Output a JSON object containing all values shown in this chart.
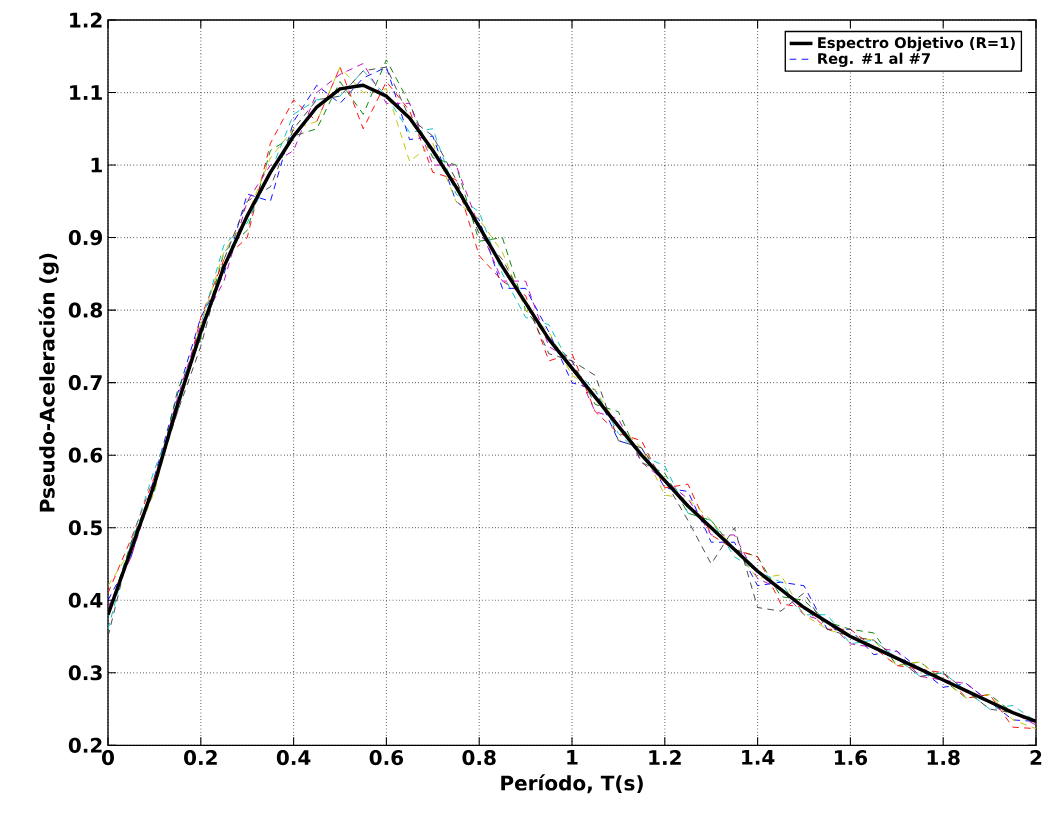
{
  "chart_data": {
    "type": "line",
    "xlabel": "Período, T(s)",
    "ylabel": "Pseudo-Aceleración (g)",
    "xlim": [
      0,
      2
    ],
    "ylim": [
      0.2,
      1.2
    ],
    "xticks": [
      0,
      0.2,
      0.4,
      0.6,
      0.8,
      1,
      1.2,
      1.4,
      1.6,
      1.8,
      2
    ],
    "yticks": [
      0.2,
      0.3,
      0.4,
      0.5,
      0.6,
      0.7,
      0.8,
      0.9,
      1,
      1.1,
      1.2
    ],
    "grid": true,
    "legend": "top right",
    "marker": "none",
    "x": [
      0,
      0.05,
      0.1,
      0.15,
      0.2,
      0.25,
      0.3,
      0.35,
      0.4,
      0.45,
      0.5,
      0.55,
      0.6,
      0.65,
      0.7,
      0.75,
      0.8,
      0.85,
      0.9,
      0.95,
      1,
      1.05,
      1.1,
      1.15,
      1.2,
      1.25,
      1.3,
      1.35,
      1.4,
      1.45,
      1.5,
      1.55,
      1.6,
      1.65,
      1.7,
      1.75,
      1.8,
      1.85,
      1.9,
      1.95,
      2
    ],
    "series": [
      {
        "name": "Espectro Objetivo (R=1)",
        "color": "#000000",
        "line_style": "solid",
        "values": [
          0.38,
          0.47,
          0.56,
          0.67,
          0.77,
          0.86,
          0.93,
          0.99,
          1.04,
          1.08,
          1.105,
          1.11,
          1.095,
          1.065,
          1.02,
          0.97,
          0.915,
          0.86,
          0.81,
          0.76,
          0.72,
          0.68,
          0.64,
          0.6,
          0.565,
          0.53,
          0.5,
          0.47,
          0.44,
          0.415,
          0.39,
          0.37,
          0.35,
          0.335,
          0.32,
          0.305,
          0.29,
          0.275,
          0.26,
          0.245,
          0.233
        ]
      },
      {
        "name": "Reg. #1 al #7",
        "color": "#0000ff",
        "line_style": "dashed",
        "values": [
          0.4,
          0.46,
          0.57,
          0.685,
          0.79,
          0.85,
          0.96,
          0.95,
          1.06,
          1.11,
          1.085,
          1.12,
          1.135,
          1.035,
          1.04,
          0.95,
          0.925,
          0.83,
          0.83,
          0.77,
          0.7,
          0.69,
          0.62,
          0.61,
          0.555,
          0.55,
          0.48,
          0.48,
          0.42,
          0.425,
          0.42,
          0.36,
          0.36,
          0.325,
          0.33,
          0.305,
          0.28,
          0.285,
          0.26,
          0.235,
          0.233
        ]
      },
      {
        "color": "#008000",
        "line_style": "dashed",
        "values": [
          0.38,
          0.48,
          0.55,
          0.69,
          0.76,
          0.88,
          0.91,
          1.02,
          1.04,
          1.05,
          1.115,
          1.07,
          1.145,
          1.085,
          1.01,
          1.0,
          0.895,
          0.9,
          0.8,
          0.76,
          0.73,
          0.67,
          0.66,
          0.59,
          0.575,
          0.52,
          0.51,
          0.47,
          0.46,
          0.405,
          0.4,
          0.37,
          0.36,
          0.355,
          0.31,
          0.315,
          0.29,
          0.265,
          0.27,
          0.245,
          0.233
        ]
      },
      {
        "color": "#ff0000",
        "line_style": "dashed",
        "values": [
          0.41,
          0.485,
          0.57,
          0.66,
          0.79,
          0.87,
          0.9,
          1.03,
          1.09,
          1.06,
          1.135,
          1.05,
          1.115,
          1.075,
          0.99,
          0.98,
          0.875,
          0.84,
          0.82,
          0.73,
          0.74,
          0.66,
          0.63,
          0.62,
          0.555,
          0.56,
          0.49,
          0.47,
          0.46,
          0.395,
          0.39,
          0.36,
          0.36,
          0.335,
          0.31,
          0.305,
          0.3,
          0.265,
          0.27,
          0.225,
          0.223
        ]
      },
      {
        "color": "#00bfbf",
        "line_style": "dashed",
        "values": [
          0.36,
          0.48,
          0.58,
          0.66,
          0.78,
          0.89,
          0.92,
          0.99,
          1.07,
          1.09,
          1.095,
          1.13,
          1.095,
          1.045,
          1.05,
          0.96,
          0.935,
          0.85,
          0.79,
          0.78,
          0.72,
          0.69,
          0.63,
          0.6,
          0.585,
          0.52,
          0.51,
          0.46,
          0.44,
          0.425,
          0.38,
          0.38,
          0.34,
          0.345,
          0.32,
          0.295,
          0.3,
          0.275,
          0.25,
          0.255,
          0.233
        ]
      },
      {
        "color": "#bf00bf",
        "line_style": "dashed",
        "values": [
          0.39,
          0.46,
          0.56,
          0.68,
          0.78,
          0.84,
          0.95,
          1.0,
          1.02,
          1.1,
          1.125,
          1.14,
          1.085,
          1.085,
          1.0,
          1.0,
          0.915,
          0.84,
          0.84,
          0.75,
          0.73,
          0.66,
          0.65,
          0.59,
          0.565,
          0.54,
          0.49,
          0.49,
          0.43,
          0.415,
          0.38,
          0.37,
          0.34,
          0.335,
          0.33,
          0.295,
          0.29,
          0.285,
          0.26,
          0.245,
          0.228
        ]
      },
      {
        "color": "#bfbf00",
        "line_style": "dashed",
        "values": [
          0.42,
          0.47,
          0.55,
          0.67,
          0.78,
          0.88,
          0.93,
          1.01,
          1.05,
          1.06,
          1.135,
          1.1,
          1.105,
          1.005,
          1.03,
          0.95,
          0.925,
          0.88,
          0.8,
          0.77,
          0.71,
          0.69,
          0.64,
          0.61,
          0.545,
          0.54,
          0.51,
          0.47,
          0.43,
          0.435,
          0.38,
          0.36,
          0.35,
          0.345,
          0.31,
          0.315,
          0.29,
          0.265,
          0.27,
          0.235,
          0.223
        ]
      },
      {
        "color": "#404040",
        "line_style": "dashed",
        "values": [
          0.35,
          0.48,
          0.56,
          0.66,
          0.75,
          0.87,
          0.95,
          0.97,
          1.05,
          1.09,
          1.095,
          1.13,
          1.135,
          1.065,
          1.04,
          0.98,
          0.905,
          0.87,
          0.81,
          0.74,
          0.73,
          0.71,
          0.62,
          0.61,
          0.565,
          0.51,
          0.45,
          0.5,
          0.39,
          0.385,
          0.41,
          0.36,
          0.35,
          0.345,
          0.32,
          0.295,
          0.3,
          0.275,
          0.25,
          0.245,
          0.233
        ]
      }
    ]
  }
}
